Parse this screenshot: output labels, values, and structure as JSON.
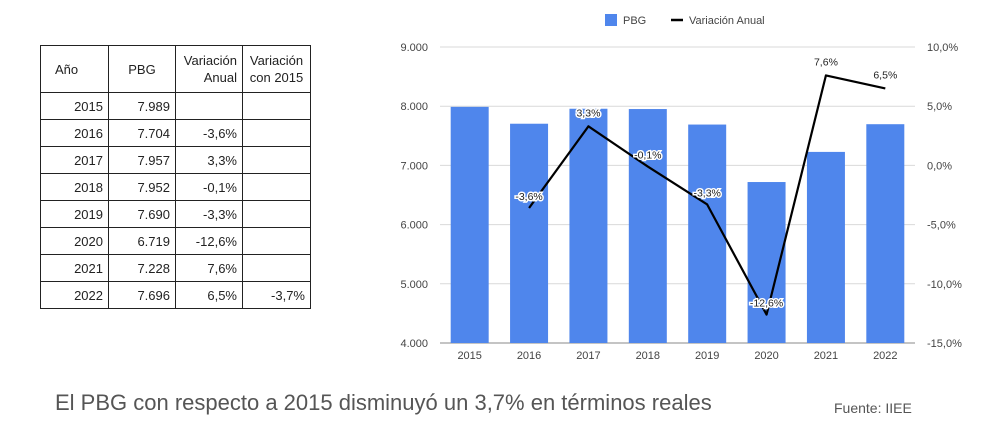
{
  "table": {
    "headers": [
      [
        "Año"
      ],
      [
        "PBG"
      ],
      [
        "Variación",
        "Anual"
      ],
      [
        "Variación",
        "con 2015"
      ]
    ],
    "rows": [
      [
        "2015",
        "7.989",
        "",
        ""
      ],
      [
        "2016",
        "7.704",
        "-3,6%",
        ""
      ],
      [
        "2017",
        "7.957",
        "3,3%",
        ""
      ],
      [
        "2018",
        "7.952",
        "-0,1%",
        ""
      ],
      [
        "2019",
        "7.690",
        "-3,3%",
        ""
      ],
      [
        "2020",
        "6.719",
        "-12,6%",
        ""
      ],
      [
        "2021",
        "7.228",
        "7,6%",
        ""
      ],
      [
        "2022",
        "7.696",
        "6,5%",
        "-3,7%"
      ]
    ]
  },
  "chart_data": {
    "type": "bar",
    "categories": [
      "2015",
      "2016",
      "2017",
      "2018",
      "2019",
      "2020",
      "2021",
      "2022"
    ],
    "series": [
      {
        "name": "PBG",
        "type": "bar",
        "axis": "left",
        "color": "#4f86ec",
        "values": [
          7989,
          7704,
          7957,
          7952,
          7690,
          6719,
          7228,
          7696
        ]
      },
      {
        "name": "Variación Anual",
        "type": "line",
        "axis": "right",
        "color": "#000000",
        "values": [
          null,
          -3.6,
          3.3,
          -0.1,
          -3.3,
          -12.6,
          7.6,
          6.5
        ],
        "labels": [
          "",
          "-3,6%",
          "3,3%",
          "-0,1%",
          "-3,3%",
          "-12,6%",
          "7,6%",
          "6,5%"
        ]
      }
    ],
    "y_left": {
      "min": 4000,
      "max": 9000,
      "step": 1000,
      "tick_labels": [
        "4.000",
        "5.000",
        "6.000",
        "7.000",
        "8.000",
        "9.000"
      ]
    },
    "y_right": {
      "min": -15,
      "max": 10,
      "step": 5,
      "tick_labels": [
        "-15,0%",
        "-10,0%",
        "-5,0%",
        "0,0%",
        "5,0%",
        "10,0%"
      ]
    },
    "grid": true,
    "legend": "top-center"
  },
  "caption": "El PBG con respecto a 2015 disminuyó un 3,7% en términos reales",
  "source": "Fuente: IIEE"
}
